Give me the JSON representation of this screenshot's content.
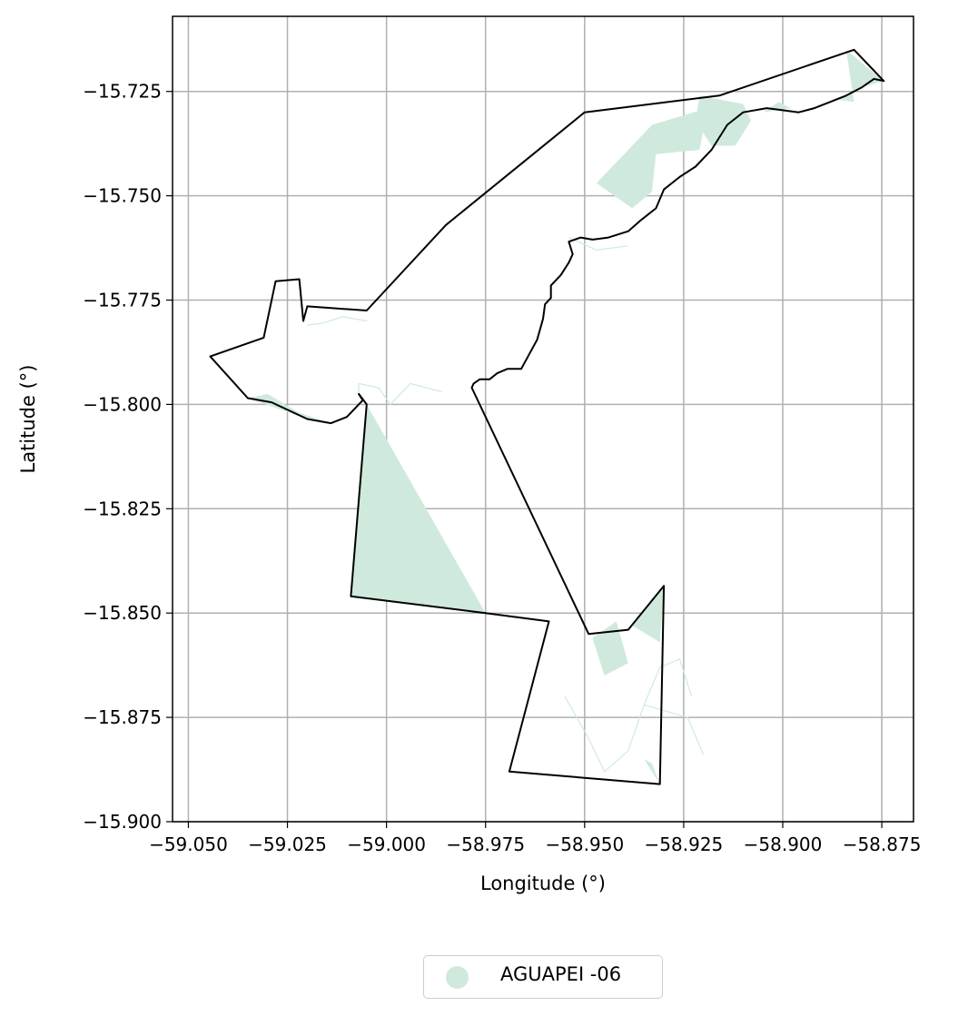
{
  "chart_data": {
    "type": "map",
    "xlabel": "Longitude (°)",
    "ylabel": "Latitude (°)",
    "xlim": [
      -59.054,
      -58.867
    ],
    "ylim": [
      -15.9,
      -15.707
    ],
    "xticks": [
      -59.05,
      -59.025,
      -59.0,
      -58.975,
      -58.95,
      -58.925,
      -58.9,
      -58.875
    ],
    "xtick_labels": [
      "−59.050",
      "−59.025",
      "−59.000",
      "−58.975",
      "−58.950",
      "−58.925",
      "−58.900",
      "−58.875"
    ],
    "yticks": [
      -15.725,
      -15.75,
      -15.775,
      -15.8,
      -15.825,
      -15.85,
      -15.875,
      -15.9
    ],
    "ytick_labels": [
      "−15.725",
      "−15.750",
      "−15.775",
      "−15.800",
      "−15.825",
      "−15.850",
      "−15.875",
      "−15.900"
    ],
    "grid": true,
    "colors": {
      "fill": "#cfeadd",
      "boundary": "#000000",
      "grid": "#b0b0b0"
    },
    "legend": {
      "placement": "bottom-center",
      "entries": [
        {
          "label": "AGUAPEI -06",
          "color": "#cfeadd"
        }
      ]
    },
    "boundary": [
      [
        -58.9785,
        -15.796
      ],
      [
        -58.978,
        -15.795
      ],
      [
        -58.9765,
        -15.794
      ],
      [
        -58.974,
        -15.794
      ],
      [
        -58.972,
        -15.7925
      ],
      [
        -58.9695,
        -15.7915
      ],
      [
        -58.966,
        -15.7915
      ],
      [
        -58.964,
        -15.788
      ],
      [
        -58.962,
        -15.7845
      ],
      [
        -58.9605,
        -15.7795
      ],
      [
        -58.96,
        -15.776
      ],
      [
        -58.9585,
        -15.7745
      ],
      [
        -58.9585,
        -15.7715
      ],
      [
        -58.956,
        -15.769
      ],
      [
        -58.954,
        -15.766
      ],
      [
        -58.953,
        -15.764
      ],
      [
        -58.954,
        -15.761
      ],
      [
        -58.951,
        -15.76
      ],
      [
        -58.948,
        -15.7605
      ],
      [
        -58.944,
        -15.76
      ],
      [
        -58.939,
        -15.7585
      ],
      [
        -58.936,
        -15.756
      ],
      [
        -58.932,
        -15.753
      ],
      [
        -58.93,
        -15.7485
      ],
      [
        -58.926,
        -15.7455
      ],
      [
        -58.922,
        -15.743
      ],
      [
        -58.918,
        -15.739
      ],
      [
        -58.914,
        -15.733
      ],
      [
        -58.91,
        -15.73
      ],
      [
        -58.904,
        -15.729
      ],
      [
        -58.9,
        -15.7295
      ],
      [
        -58.896,
        -15.73
      ],
      [
        -58.892,
        -15.729
      ],
      [
        -58.888,
        -15.7275
      ],
      [
        -58.884,
        -15.726
      ],
      [
        -58.88,
        -15.724
      ],
      [
        -58.877,
        -15.722
      ],
      [
        -58.8745,
        -15.7225
      ],
      [
        -58.882,
        -15.715
      ],
      [
        -58.916,
        -15.726
      ],
      [
        -58.95,
        -15.73
      ],
      [
        -58.985,
        -15.757
      ],
      [
        -59.005,
        -15.7775
      ],
      [
        -59.02,
        -15.7765
      ],
      [
        -59.021,
        -15.78
      ],
      [
        -59.022,
        -15.77
      ],
      [
        -59.028,
        -15.7705
      ],
      [
        -59.031,
        -15.784
      ],
      [
        -59.0445,
        -15.7885
      ],
      [
        -59.035,
        -15.7985
      ],
      [
        -59.029,
        -15.7995
      ],
      [
        -59.02,
        -15.8035
      ],
      [
        -59.014,
        -15.8045
      ],
      [
        -59.01,
        -15.803
      ],
      [
        -59.006,
        -15.799
      ],
      [
        -59.007,
        -15.7975
      ],
      [
        -59.005,
        -15.8
      ],
      [
        -59.009,
        -15.846
      ],
      [
        -58.975,
        -15.85
      ],
      [
        -58.959,
        -15.852
      ],
      [
        -58.969,
        -15.888
      ],
      [
        -58.931,
        -15.891
      ],
      [
        -58.93,
        -15.8435
      ],
      [
        -58.939,
        -15.854
      ],
      [
        -58.949,
        -15.855
      ],
      [
        -58.9785,
        -15.796
      ]
    ],
    "filled_areas": [
      [
        [
          -59.005,
          -15.8
        ],
        [
          -58.975,
          -15.85
        ],
        [
          -59.009,
          -15.846
        ]
      ],
      [
        [
          -58.947,
          -15.747
        ],
        [
          -58.933,
          -15.733
        ],
        [
          -58.919,
          -15.729
        ],
        [
          -58.921,
          -15.739
        ],
        [
          -58.932,
          -15.74
        ],
        [
          -58.933,
          -15.749
        ],
        [
          -58.938,
          -15.753
        ]
      ],
      [
        [
          -58.921,
          -15.726
        ],
        [
          -58.91,
          -15.728
        ],
        [
          -58.908,
          -15.732
        ],
        [
          -58.912,
          -15.738
        ],
        [
          -58.918,
          -15.738
        ],
        [
          -58.922,
          -15.732
        ]
      ],
      [
        [
          -58.884,
          -15.715
        ],
        [
          -58.8745,
          -15.7225
        ],
        [
          -58.88,
          -15.724
        ],
        [
          -58.886,
          -15.727
        ],
        [
          -58.882,
          -15.7275
        ]
      ],
      [
        [
          -58.905,
          -15.73
        ],
        [
          -58.898,
          -15.729
        ],
        [
          -58.901,
          -15.7275
        ]
      ],
      [
        [
          -59.035,
          -15.7985
        ],
        [
          -59.03,
          -15.7975
        ],
        [
          -59.022,
          -15.802
        ],
        [
          -59.014,
          -15.8045
        ],
        [
          -59.02,
          -15.8035
        ]
      ],
      [
        [
          -58.93,
          -15.8435
        ],
        [
          -58.931,
          -15.857
        ],
        [
          -58.938,
          -15.853
        ]
      ],
      [
        [
          -58.948,
          -15.856
        ],
        [
          -58.945,
          -15.865
        ],
        [
          -58.939,
          -15.862
        ],
        [
          -58.942,
          -15.852
        ]
      ],
      [
        [
          -58.931,
          -15.891
        ],
        [
          -58.935,
          -15.885
        ],
        [
          -58.933,
          -15.886
        ]
      ]
    ],
    "streams": [
      [
        [
          -59.005,
          -15.78
        ],
        [
          -59.011,
          -15.779
        ],
        [
          -59.016,
          -15.7805
        ],
        [
          -59.02,
          -15.781
        ]
      ],
      [
        [
          -59.007,
          -15.798
        ],
        [
          -59.007,
          -15.795
        ],
        [
          -59.002,
          -15.796
        ],
        [
          -58.999,
          -15.8
        ],
        [
          -58.994,
          -15.795
        ],
        [
          -58.986,
          -15.797
        ]
      ],
      [
        [
          -58.954,
          -15.76
        ],
        [
          -58.947,
          -15.763
        ],
        [
          -58.939,
          -15.762
        ]
      ],
      [
        [
          -58.955,
          -15.87
        ],
        [
          -58.949,
          -15.88
        ],
        [
          -58.945,
          -15.888
        ],
        [
          -58.939,
          -15.883
        ],
        [
          -58.935,
          -15.872
        ],
        [
          -58.931,
          -15.863
        ],
        [
          -58.926,
          -15.861
        ],
        [
          -58.923,
          -15.87
        ]
      ],
      [
        [
          -58.935,
          -15.872
        ],
        [
          -58.924,
          -15.875
        ],
        [
          -58.92,
          -15.884
        ]
      ]
    ]
  }
}
